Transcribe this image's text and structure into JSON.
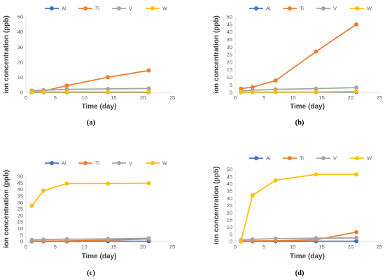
{
  "colors": {
    "Al": "#4472c4",
    "Ti": "#ed7d31",
    "V": "#a5a5a5",
    "W": "#ffc000"
  },
  "chart_data": [
    {
      "type": "line",
      "panel_label": "(a)",
      "xlabel": "Time (day)",
      "ylabel": "ion concentration (ppb)",
      "xlim": [
        0,
        25
      ],
      "ylim": [
        0,
        50
      ],
      "xticks": [
        "0",
        "5",
        "10",
        "15",
        "20",
        "25"
      ],
      "yticks": [
        "0",
        "10",
        "20",
        "30",
        "40",
        "50"
      ],
      "legend": "top",
      "grid": false,
      "series": [
        {
          "name": "Al",
          "x": [
            1,
            3,
            7,
            14,
            21
          ],
          "y": [
            0.1,
            0.1,
            0.1,
            0.1,
            0.1
          ]
        },
        {
          "name": "Ti",
          "x": [
            1,
            3,
            7,
            14,
            21
          ],
          "y": [
            0.6,
            0.9,
            4.5,
            10.0,
            14.5
          ]
        },
        {
          "name": "V",
          "x": [
            1,
            3,
            7,
            14,
            21
          ],
          "y": [
            1.2,
            1.5,
            2.0,
            2.3,
            2.6
          ]
        },
        {
          "name": "W",
          "x": [
            1,
            3,
            7,
            14,
            21
          ],
          "y": [
            0.3,
            0.3,
            0.3,
            0.3,
            0.3
          ]
        }
      ]
    },
    {
      "type": "line",
      "panel_label": "(b)",
      "xlabel": "Time (day)",
      "ylabel": "ion concentration (ppb)",
      "xlim": [
        0,
        25
      ],
      "ylim": [
        0,
        50
      ],
      "xticks": [
        "0",
        "5",
        "10",
        "15",
        "20",
        "25"
      ],
      "yticks": [
        "0",
        "5",
        "10",
        "15",
        "20",
        "25",
        "30",
        "35",
        "40",
        "45",
        "50"
      ],
      "legend": "top",
      "grid": false,
      "series": [
        {
          "name": "Al",
          "x": [
            1,
            3,
            7,
            14,
            21
          ],
          "y": [
            0.1,
            0.1,
            0.1,
            0.2,
            0.2
          ]
        },
        {
          "name": "Ti",
          "x": [
            1,
            3,
            7,
            14,
            21
          ],
          "y": [
            2.5,
            3.5,
            7.8,
            27.0,
            45.0
          ]
        },
        {
          "name": "V",
          "x": [
            1,
            3,
            7,
            14,
            21
          ],
          "y": [
            1.0,
            1.5,
            2.0,
            2.5,
            3.2
          ]
        },
        {
          "name": "W",
          "x": [
            1,
            3,
            7,
            14,
            21
          ],
          "y": [
            0.2,
            0.2,
            0.2,
            0.3,
            0.6
          ]
        }
      ]
    },
    {
      "type": "line",
      "panel_label": "(c)",
      "xlabel": "Time (day)",
      "ylabel": "ion concentration (ppb)",
      "xlim": [
        0,
        25
      ],
      "ylim": [
        0,
        50
      ],
      "xticks": [
        "0",
        "5",
        "10",
        "15",
        "20",
        "25"
      ],
      "yticks": [
        "0",
        "5",
        "10",
        "15",
        "20",
        "25",
        "30",
        "35",
        "40",
        "45",
        "50"
      ],
      "legend": "top",
      "grid": false,
      "series": [
        {
          "name": "Al",
          "x": [
            1,
            3,
            7,
            14,
            21
          ],
          "y": [
            0.1,
            0.1,
            0.1,
            0.2,
            0.2
          ]
        },
        {
          "name": "Ti",
          "x": [
            1,
            3,
            7,
            14,
            21
          ],
          "y": [
            0.2,
            0.3,
            0.5,
            1.0,
            2.0
          ]
        },
        {
          "name": "V",
          "x": [
            1,
            3,
            7,
            14,
            21
          ],
          "y": [
            1.2,
            1.5,
            1.8,
            2.0,
            2.5
          ]
        },
        {
          "name": "W",
          "x": [
            1,
            3,
            7,
            14,
            21
          ],
          "y": [
            27.5,
            39.0,
            44.5,
            44.5,
            44.8
          ]
        }
      ]
    },
    {
      "type": "line",
      "panel_label": "(d)",
      "xlabel": "Time (day)",
      "ylabel": "ion concentration (ppb)",
      "xlim": [
        0,
        25
      ],
      "ylim": [
        0,
        50
      ],
      "xticks": [
        "0",
        "5",
        "10",
        "15",
        "20",
        "25"
      ],
      "yticks": [
        "0",
        "5",
        "10",
        "15",
        "20",
        "25",
        "30",
        "35",
        "40",
        "45",
        "50"
      ],
      "legend": "top",
      "grid": false,
      "series": [
        {
          "name": "Al",
          "x": [
            1,
            3,
            7,
            14,
            21
          ],
          "y": [
            0.1,
            0.1,
            0.1,
            0.2,
            0.2
          ]
        },
        {
          "name": "Ti",
          "x": [
            1,
            3,
            7,
            14,
            21
          ],
          "y": [
            0.3,
            0.4,
            0.5,
            1.2,
            6.5
          ]
        },
        {
          "name": "V",
          "x": [
            1,
            3,
            7,
            14,
            21
          ],
          "y": [
            1.0,
            1.5,
            2.0,
            2.3,
            2.5
          ]
        },
        {
          "name": "W",
          "x": [
            1,
            3,
            7,
            14,
            21
          ],
          "y": [
            0.3,
            32.0,
            42.5,
            46.5,
            46.5
          ]
        }
      ]
    }
  ]
}
